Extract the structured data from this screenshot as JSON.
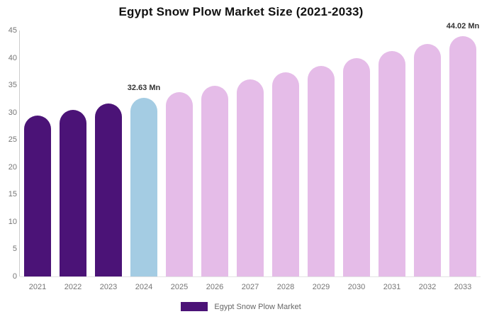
{
  "chart_data": {
    "type": "bar",
    "title": "Egypt Snow Plow Market Size (2021-2033)",
    "categories": [
      "2021",
      "2022",
      "2023",
      "2024",
      "2025",
      "2026",
      "2027",
      "2028",
      "2029",
      "2030",
      "2031",
      "2032",
      "2033"
    ],
    "values": [
      29.5,
      30.5,
      31.6,
      32.63,
      33.7,
      34.9,
      36.1,
      37.3,
      38.5,
      39.9,
      41.2,
      42.6,
      44.02
    ],
    "unit": "Mn",
    "bar_roles": [
      "historical",
      "historical",
      "historical",
      "current",
      "forecast",
      "forecast",
      "forecast",
      "forecast",
      "forecast",
      "forecast",
      "forecast",
      "forecast",
      "forecast"
    ],
    "colors": {
      "historical": "#4b1377",
      "current": "#a4cce3",
      "forecast": "#e5bce8"
    },
    "annotations": [
      {
        "category": "2024",
        "text": "32.63 Mn"
      },
      {
        "category": "2033",
        "text": "44.02 Mn"
      }
    ],
    "xlabel": "",
    "ylabel": "",
    "ylim": [
      0,
      45
    ],
    "yticks": [
      0,
      5,
      10,
      15,
      20,
      25,
      30,
      35,
      40,
      45
    ],
    "grid": false,
    "legend": {
      "position": "bottom",
      "items": [
        {
          "label": "Egypt Snow Plow Market",
          "color": "#4b1377"
        }
      ]
    }
  }
}
